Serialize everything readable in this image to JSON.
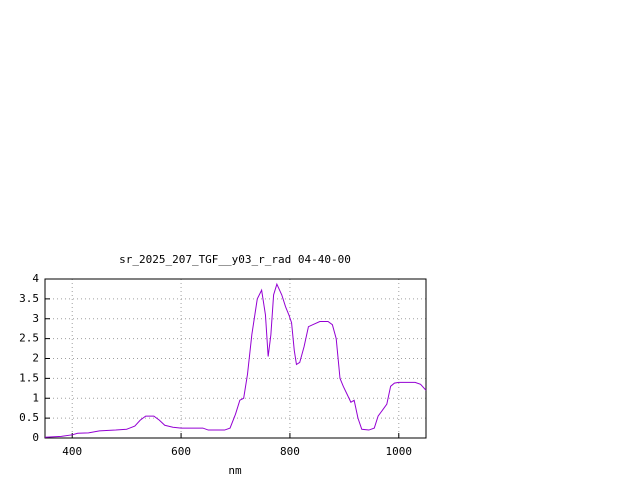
{
  "chart_data": {
    "type": "line",
    "title": "sr_2025_207_TGF__y03_r_rad 04-40-00",
    "x_label": "nm",
    "x": [
      350,
      380,
      400,
      410,
      430,
      450,
      480,
      500,
      515,
      525,
      535,
      550,
      560,
      570,
      585,
      600,
      620,
      640,
      650,
      680,
      690,
      700,
      708,
      715,
      722,
      730,
      740,
      748,
      755,
      760,
      765,
      770,
      776,
      785,
      792,
      798,
      803,
      808,
      812,
      818,
      826,
      834,
      842,
      855,
      870,
      878,
      885,
      892,
      898,
      905,
      912,
      918,
      925,
      932,
      945,
      955,
      962,
      970,
      978,
      985,
      992,
      1000,
      1030,
      1040,
      1050
    ],
    "values": [
      0.02,
      0.04,
      0.08,
      0.12,
      0.13,
      0.18,
      0.2,
      0.22,
      0.3,
      0.45,
      0.55,
      0.55,
      0.45,
      0.32,
      0.27,
      0.25,
      0.25,
      0.25,
      0.2,
      0.2,
      0.25,
      0.6,
      0.95,
      1.0,
      1.6,
      2.6,
      3.5,
      3.72,
      3.1,
      2.05,
      2.6,
      3.6,
      3.87,
      3.6,
      3.3,
      3.1,
      2.9,
      2.2,
      1.85,
      1.9,
      2.3,
      2.8,
      2.85,
      2.93,
      2.93,
      2.85,
      2.5,
      1.5,
      1.3,
      1.1,
      0.9,
      0.95,
      0.5,
      0.22,
      0.2,
      0.25,
      0.55,
      0.7,
      0.85,
      1.3,
      1.38,
      1.4,
      1.4,
      1.35,
      1.2
    ],
    "color": "#9400d3",
    "xlim": [
      350,
      1050
    ],
    "xticks": [
      400,
      600,
      800,
      1000
    ],
    "ylim": [
      0,
      4
    ],
    "yticks": [
      0,
      0.5,
      1,
      1.5,
      2,
      2.5,
      3,
      3.5,
      4
    ],
    "grid": true
  }
}
